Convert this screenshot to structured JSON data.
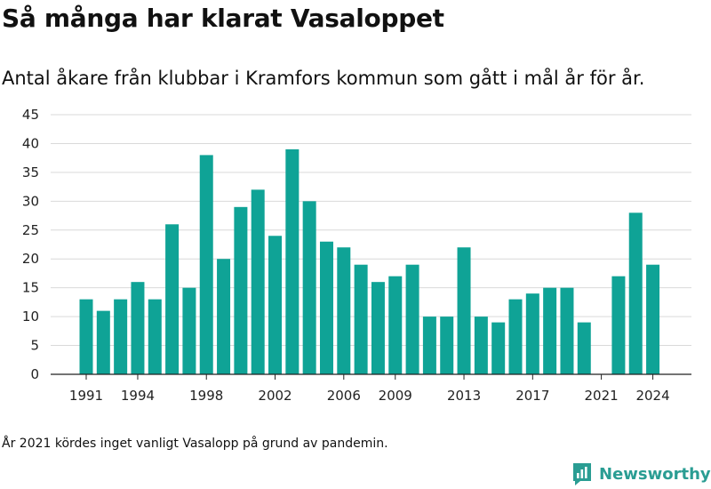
{
  "title": "Så många har klarat Vasaloppet",
  "subtitle": "Antal åkare från klubbar i Kramfors kommun som gått i mål år för år.",
  "note": "År 2021 kördes inget vanligt Vasalopp på grund av pandemin.",
  "brand": {
    "name": "Newsworthy",
    "color": "#2a9d93"
  },
  "colors": {
    "bar": "#0fa396",
    "grid": "#d9d9d9",
    "axis": "#222222"
  },
  "chart_data": {
    "type": "bar",
    "categories": [
      1991,
      1992,
      1993,
      1994,
      1995,
      1996,
      1997,
      1998,
      1999,
      2000,
      2001,
      2002,
      2003,
      2004,
      2005,
      2006,
      2007,
      2008,
      2009,
      2010,
      2011,
      2012,
      2013,
      2014,
      2015,
      2016,
      2017,
      2018,
      2019,
      2020,
      2021,
      2022,
      2023,
      2024
    ],
    "values": [
      13,
      11,
      13,
      16,
      13,
      26,
      15,
      38,
      20,
      29,
      32,
      24,
      39,
      30,
      23,
      22,
      19,
      16,
      17,
      19,
      10,
      10,
      22,
      10,
      9,
      13,
      14,
      15,
      15,
      9,
      0,
      17,
      28,
      19
    ],
    "x_tick_labels": [
      "1991",
      "1994",
      "1998",
      "2002",
      "2006",
      "2009",
      "2013",
      "2017",
      "2021",
      "2024"
    ],
    "y_ticks": [
      "0",
      "5",
      "10",
      "15",
      "20",
      "25",
      "30",
      "35",
      "40",
      "45"
    ],
    "ylim": [
      0,
      45
    ],
    "grid": true,
    "legend": "none"
  }
}
